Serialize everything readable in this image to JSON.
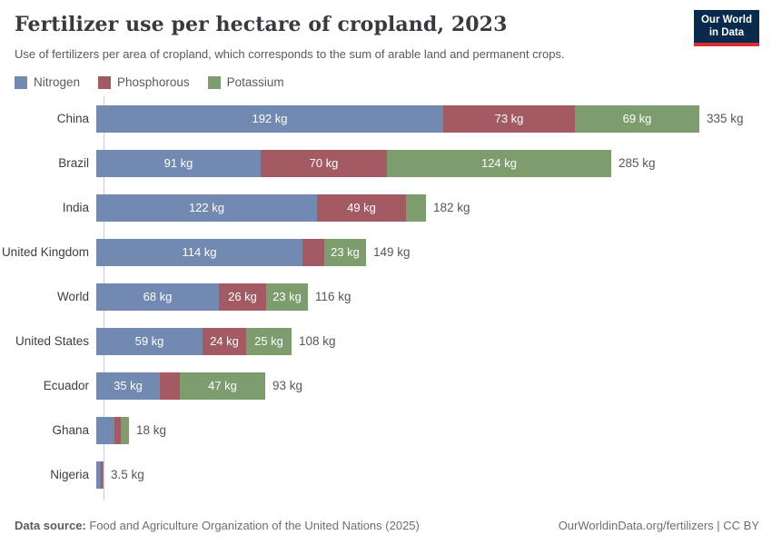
{
  "header": {
    "title": "Fertilizer use per hectare of cropland, 2023",
    "subtitle": "Use of fertilizers per area of cropland, which corresponds to the sum of arable land and permanent crops.",
    "logo": {
      "line1": "Our World",
      "line2": "in Data"
    }
  },
  "legend": [
    {
      "label": "Nitrogen",
      "color": "#7289b1"
    },
    {
      "label": "Phosphorous",
      "color": "#a35a63"
    },
    {
      "label": "Potassium",
      "color": "#7d9d6e"
    }
  ],
  "chart_data": {
    "type": "bar",
    "orientation": "horizontal",
    "stacked": true,
    "unit": "kg",
    "xlim": [
      0,
      335
    ],
    "categories": [
      "China",
      "Brazil",
      "India",
      "United Kingdom",
      "World",
      "United States",
      "Ecuador",
      "Ghana",
      "Nigeria"
    ],
    "series": [
      {
        "name": "Nitrogen",
        "color": "#7289b1",
        "values": [
          192,
          91,
          122,
          114,
          68,
          59,
          35,
          10,
          2.4
        ]
      },
      {
        "name": "Phosphorous",
        "color": "#a35a63",
        "values": [
          73,
          70,
          49,
          12,
          26,
          24,
          11,
          3.6,
          0.9
        ]
      },
      {
        "name": "Potassium",
        "color": "#7d9d6e",
        "values": [
          69,
          124,
          11,
          23,
          23,
          25,
          47,
          4.4,
          0.2
        ]
      }
    ],
    "segment_labels": [
      [
        "192 kg",
        "73 kg",
        "69 kg"
      ],
      [
        "91 kg",
        "70 kg",
        "124 kg"
      ],
      [
        "122 kg",
        "49 kg",
        ""
      ],
      [
        "114 kg",
        "",
        "23 kg"
      ],
      [
        "68 kg",
        "26 kg",
        "23 kg"
      ],
      [
        "59 kg",
        "24 kg",
        "25 kg"
      ],
      [
        "35 kg",
        "",
        "47 kg"
      ],
      [
        "",
        "",
        ""
      ],
      [
        "",
        "",
        ""
      ]
    ],
    "totals": [
      "335 kg",
      "285 kg",
      "182 kg",
      "149 kg",
      "116 kg",
      "108 kg",
      "93 kg",
      "18 kg",
      "3.5 kg"
    ]
  },
  "footer": {
    "source_label": "Data source:",
    "source_text": " Food and Agriculture Organization of the United Nations (2025)",
    "credit": "OurWorldinData.org/fertilizers | CC BY"
  }
}
